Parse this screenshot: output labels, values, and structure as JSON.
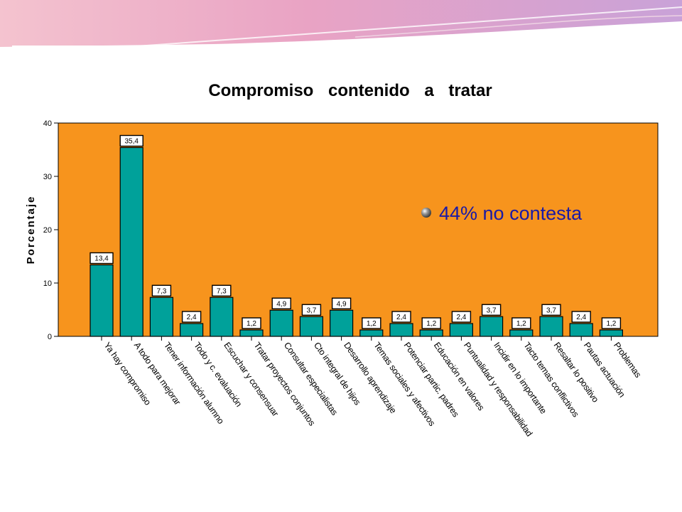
{
  "slide": {
    "callout_text": "44% no contesta"
  },
  "chart_data": {
    "type": "bar",
    "title": "Compromiso contenido a tratar",
    "xlabel": "",
    "ylabel": "Porcentaje",
    "ylim": [
      0,
      40
    ],
    "yticks": [
      0,
      10,
      20,
      30,
      40
    ],
    "grid": false,
    "categories": [
      "Ya hay compromiso",
      "A todo para mejorar",
      "Tener información alumno",
      "Todo y c. evaluación",
      "Escuchar y consensuar",
      "Tratar proyectos conjuntos",
      "Consultar especialistas",
      "Cto integral de hijos",
      "Desarrollo aprendizaje",
      "Temas sociales y afectivos",
      "Potenciar partic. padres",
      "Educación en valores",
      "Puntualidad y responsabilidad",
      "Incidir en lo importante",
      "Tacto temas conflictivos",
      "Resaltar lo positivo",
      "Pautas actuación",
      "Problemas"
    ],
    "values": [
      13.4,
      35.4,
      7.3,
      2.4,
      7.3,
      1.2,
      4.9,
      3.7,
      4.9,
      1.2,
      2.4,
      1.2,
      2.4,
      3.7,
      1.2,
      3.7,
      2.4,
      1.2
    ],
    "data_labels": [
      "13,4",
      "35,4",
      "7,3",
      "2,4",
      "7,3",
      "1,2",
      "4,9",
      "3,7",
      "4,9",
      "1,2",
      "2,4",
      "1,2",
      "2,4",
      "3,7",
      "1,2",
      "3,7",
      "2,4",
      "1,2"
    ],
    "colors": {
      "plot_background": "#F7941D",
      "bar": "#00A19A",
      "callout_text": "#1A1AA6",
      "slide_header": "#E8A0C0"
    }
  }
}
